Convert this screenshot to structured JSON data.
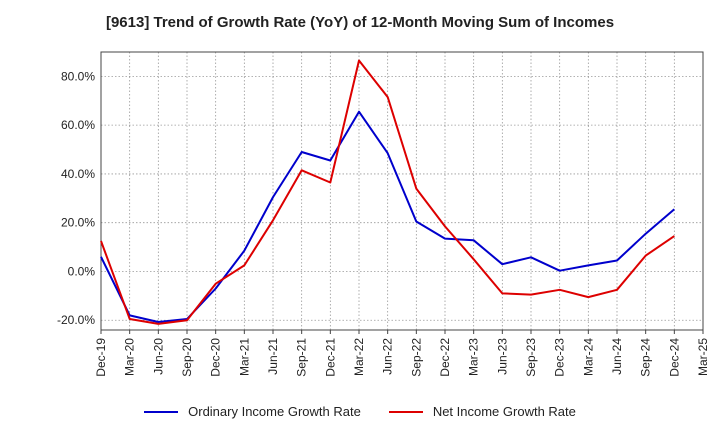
{
  "chart_data": {
    "type": "line",
    "title": "[9613]  Trend of Growth Rate (YoY) of 12-Month Moving Sum of Incomes",
    "xlabel": "",
    "ylabel": "",
    "x_ticks": [
      "Dec-19",
      "Mar-20",
      "Jun-20",
      "Sep-20",
      "Dec-20",
      "Mar-21",
      "Jun-21",
      "Sep-21",
      "Dec-21",
      "Mar-22",
      "Jun-22",
      "Sep-22",
      "Dec-22",
      "Mar-23",
      "Jun-23",
      "Sep-23",
      "Dec-23",
      "Mar-24",
      "Jun-24",
      "Sep-24",
      "Dec-24",
      "Mar-25"
    ],
    "y_ticks": [
      "-20.0%",
      "0.0%",
      "20.0%",
      "40.0%",
      "60.0%",
      "80.0%"
    ],
    "y_tick_values": [
      -20,
      0,
      20,
      40,
      60,
      80
    ],
    "ylim": [
      -24,
      90
    ],
    "grid": true,
    "legend_position": "bottom",
    "series": [
      {
        "name": "Ordinary Income Growth Rate",
        "color": "#0000cc",
        "values": [
          6.0,
          -18.0,
          -20.7,
          -19.5,
          -7.0,
          8.5,
          30.5,
          49.0,
          45.5,
          65.5,
          48.5,
          20.5,
          13.5,
          12.8,
          3.0,
          5.8,
          0.3,
          2.5,
          4.5,
          15.5,
          25.5
        ]
      },
      {
        "name": "Net Income Growth Rate",
        "color": "#dd0000",
        "values": [
          12.5,
          -19.5,
          -21.5,
          -20.0,
          -5.0,
          2.5,
          21.0,
          41.5,
          36.5,
          86.5,
          71.5,
          34.0,
          18.5,
          5.0,
          -9.0,
          -9.5,
          -7.5,
          -10.5,
          -7.5,
          6.5,
          14.5
        ]
      }
    ]
  }
}
